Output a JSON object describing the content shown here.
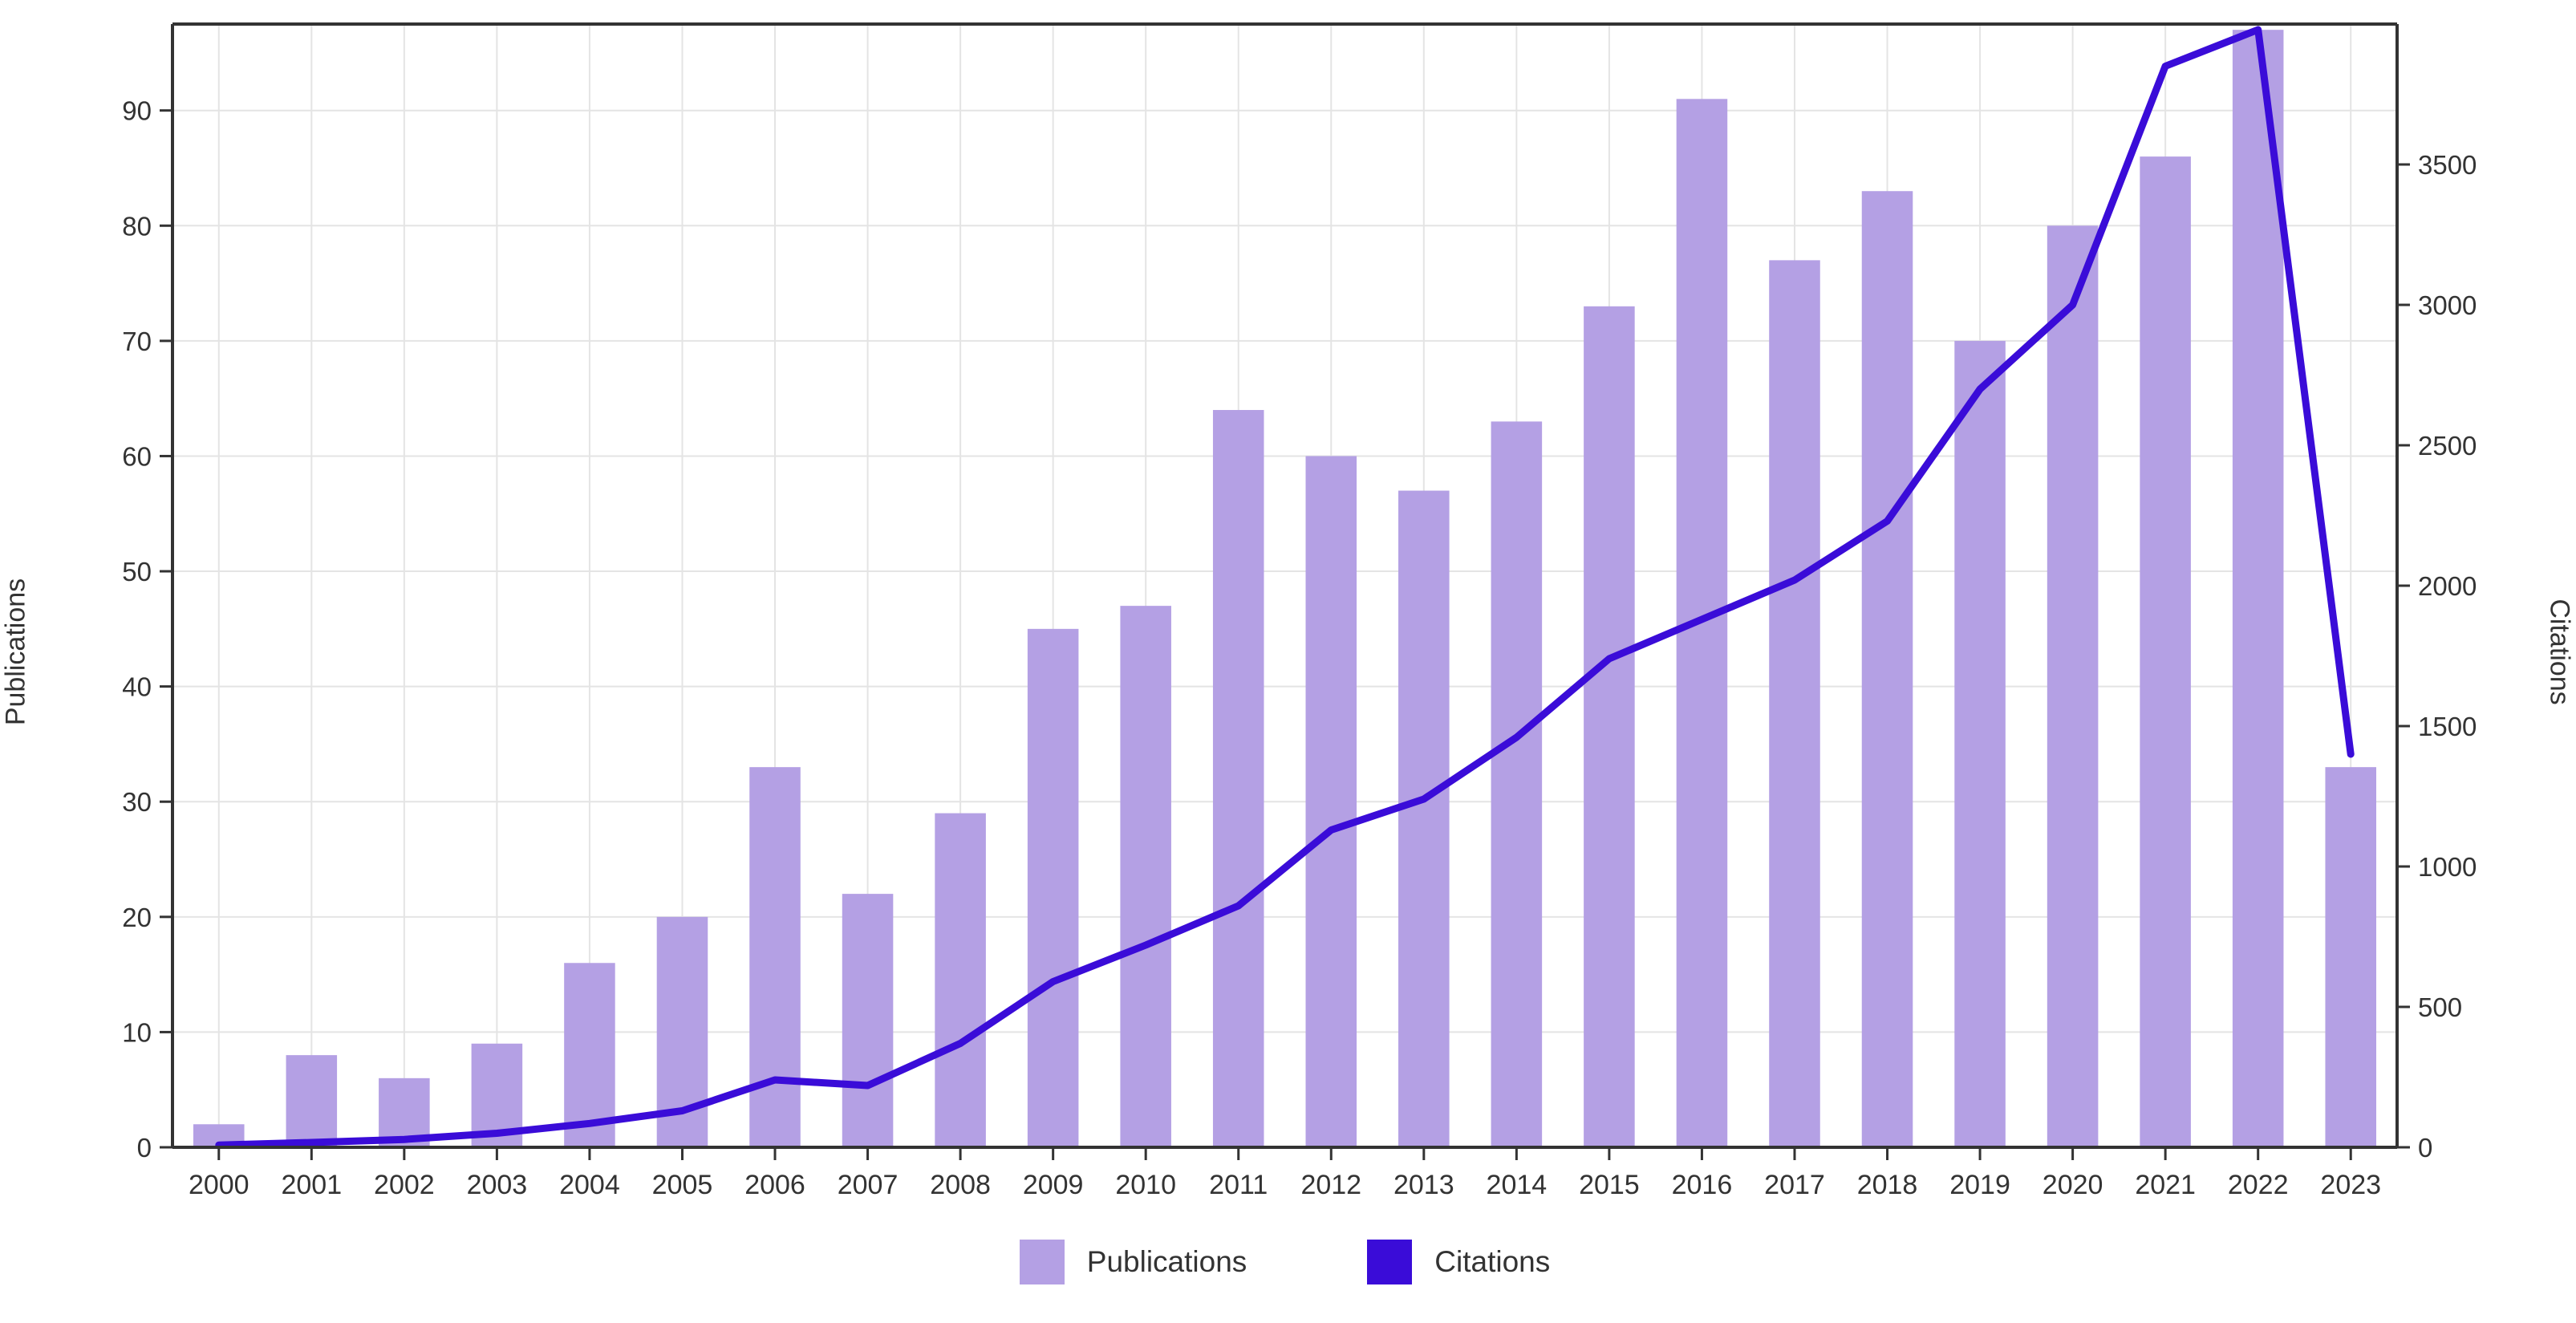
{
  "chart_data": {
    "type": "bar",
    "subtype": "dual-axis-bar-and-line",
    "title": "",
    "categories": [
      "2000",
      "2001",
      "2002",
      "2003",
      "2004",
      "2005",
      "2006",
      "2007",
      "2008",
      "2009",
      "2010",
      "2011",
      "2012",
      "2013",
      "2014",
      "2015",
      "2016",
      "2017",
      "2018",
      "2019",
      "2020",
      "2021",
      "2022",
      "2023"
    ],
    "series": [
      {
        "name": "Publications",
        "kind": "bar",
        "axis": "left",
        "color": "#b4a0e4",
        "values": [
          2,
          8,
          6,
          9,
          16,
          20,
          33,
          22,
          29,
          45,
          47,
          64,
          60,
          57,
          63,
          73,
          91,
          77,
          83,
          70,
          80,
          86,
          97,
          33
        ]
      },
      {
        "name": "Citations",
        "kind": "line",
        "axis": "right",
        "color": "#3a0cd8",
        "values": [
          8,
          17,
          28,
          50,
          85,
          130,
          240,
          220,
          370,
          590,
          720,
          860,
          1130,
          1240,
          1460,
          1740,
          1880,
          2020,
          2230,
          2700,
          3000,
          3850,
          3980,
          1400
        ]
      }
    ],
    "left_axis": {
      "label": "Publications",
      "min": 0,
      "max": 97.5,
      "ticks": [
        0,
        10,
        20,
        30,
        40,
        50,
        60,
        70,
        80,
        90
      ]
    },
    "right_axis": {
      "label": "Citations",
      "min": 0,
      "max": 4000,
      "ticks": [
        0,
        500,
        1000,
        1500,
        2000,
        2500,
        3000,
        3500
      ]
    },
    "x_axis": {
      "tick_labels": [
        "2000",
        "2001",
        "2002",
        "2003",
        "2004",
        "2005",
        "2006",
        "2007",
        "2008",
        "2009",
        "2010",
        "2011",
        "2012",
        "2013",
        "2014",
        "2015",
        "2016",
        "2017",
        "2018",
        "2019",
        "2020",
        "2021",
        "2022",
        "2023"
      ]
    },
    "grid": {
      "horizontal": true,
      "vertical": true
    },
    "legend": {
      "position": "bottom-center",
      "items": [
        "Publications",
        "Citations"
      ]
    }
  },
  "labels": {
    "left_axis_title": "Publications",
    "right_axis_title": "Citations",
    "legend_publications": "Publications",
    "legend_citations": "Citations"
  },
  "colors": {
    "background": "#ffffff",
    "bar": "#b4a0e4",
    "line": "#3a0cd8",
    "grid": "#e4e4e4",
    "spine": "#333333",
    "tick": "#333333",
    "tick_label": "#333333"
  }
}
